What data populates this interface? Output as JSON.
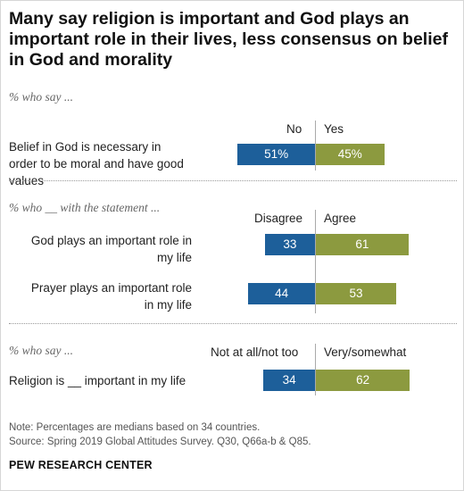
{
  "header": {
    "title": "Many say religion is important and God plays an important role in their lives, less consensus on belief in God and morality"
  },
  "colors": {
    "left_bar": "#1d5f9a",
    "right_bar": "#8c9a3f"
  },
  "chart_data": {
    "type": "bar",
    "orientation": "horizontal-diverging",
    "title": "Many say religion is important and God plays an important role in their lives, less consensus on belief in God and morality",
    "groups": [
      {
        "subtitle": "% who say ...",
        "left_header": "No",
        "right_header": "Yes",
        "rows": [
          {
            "label": "Belief in God is necessary in order to be moral and have good values",
            "left": 51,
            "right": 45,
            "left_label": "51%",
            "right_label": "45%"
          }
        ]
      },
      {
        "subtitle": "% who __ with the statement ...",
        "left_header": "Disagree",
        "right_header": "Agree",
        "rows": [
          {
            "label": "God plays an important role in my life",
            "left": 33,
            "right": 61,
            "left_label": "33",
            "right_label": "61"
          },
          {
            "label": "Prayer plays an important role in my life",
            "left": 44,
            "right": 53,
            "left_label": "44",
            "right_label": "53"
          }
        ]
      },
      {
        "subtitle": "% who say ...",
        "left_header": "Not at all/not too",
        "right_header": "Very/somewhat",
        "rows": [
          {
            "label": "Religion is __ important in my life",
            "left": 34,
            "right": 62,
            "left_label": "34",
            "right_label": "62"
          }
        ]
      }
    ],
    "xlim": [
      0,
      100
    ],
    "legend": "none",
    "grid": false
  },
  "footer": {
    "note": "Note: Percentages are medians based on 34 countries.",
    "source": "Source: Spring 2019 Global Attitudes Survey. Q30, Q66a-b & Q85.",
    "brand": "PEW RESEARCH CENTER"
  }
}
